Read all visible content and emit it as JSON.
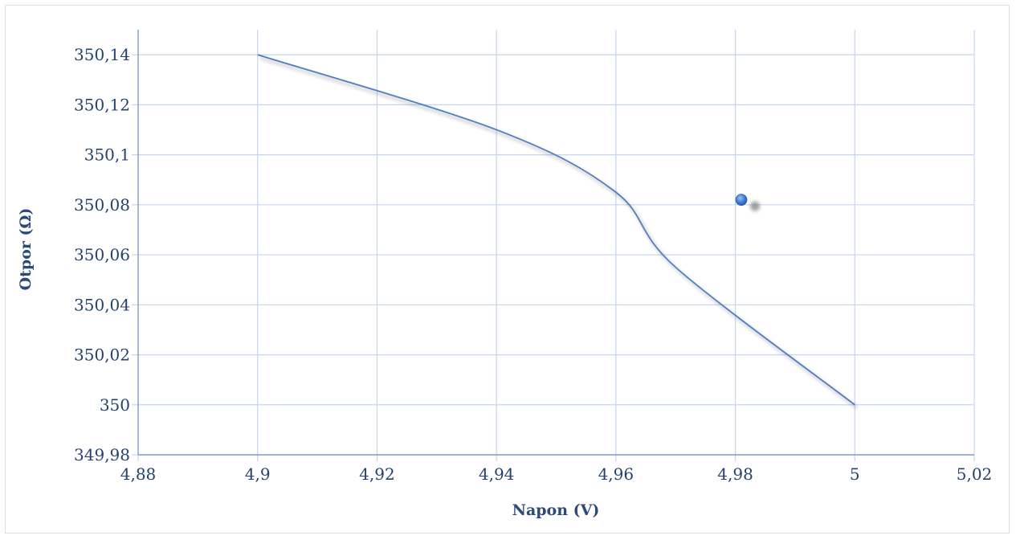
{
  "chart_data": {
    "type": "scatter",
    "xlabel": "Napon (V)",
    "ylabel": "Otpor (Ω)",
    "xlim": [
      4.88,
      5.02
    ],
    "ylim": [
      349.98,
      350.15
    ],
    "x_ticks": [
      4.88,
      4.9,
      4.92,
      4.94,
      4.96,
      4.98,
      5,
      5.02
    ],
    "y_ticks": [
      349.98,
      350,
      350.02,
      350.04,
      350.06,
      350.08,
      350.1,
      350.12,
      350.14
    ],
    "x_tick_labels": [
      "4,88",
      "4,9",
      "4,92",
      "4,94",
      "4,96",
      "4,98",
      "5",
      "5,02"
    ],
    "y_tick_labels": [
      "349,98",
      "350",
      "350,02",
      "350,04",
      "350,06",
      "350,08",
      "350,1",
      "350,12",
      "350,14"
    ],
    "grid": true,
    "series": [
      {
        "style": "smooth-line",
        "color": "#4f7ec2",
        "x": [
          4.9,
          4.94,
          4.96,
          4.97,
          5
        ],
        "y": [
          350.14,
          350.11,
          350.085,
          350.055,
          350
        ]
      },
      {
        "style": "marker",
        "color": "#3d7ed6",
        "x": [
          4.981
        ],
        "y": [
          350.082
        ]
      }
    ]
  }
}
